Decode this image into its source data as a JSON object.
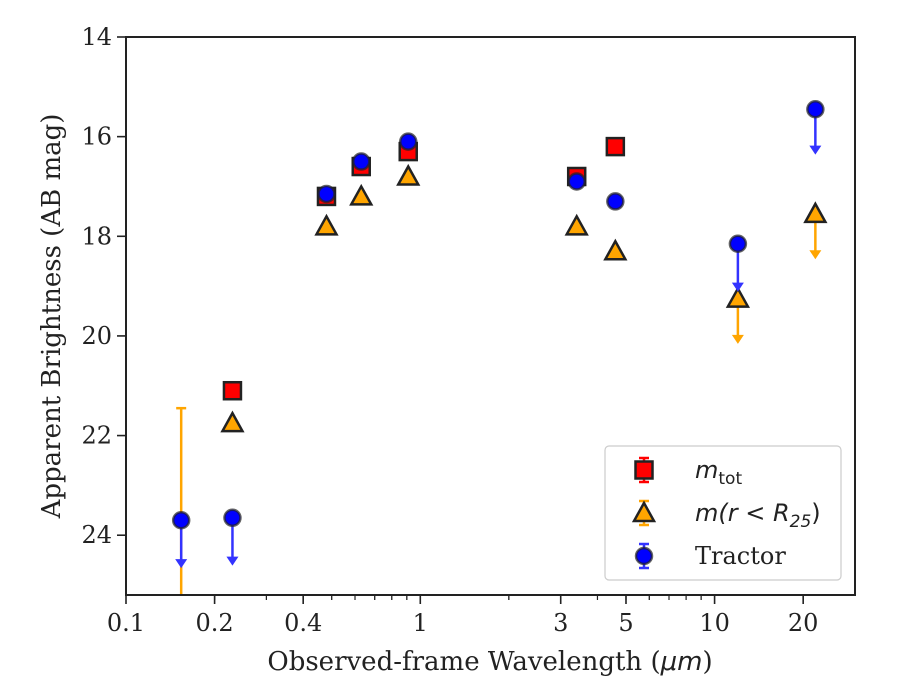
{
  "chart_data": {
    "type": "scatter",
    "xscale": "log",
    "xlim": [
      0.1,
      30
    ],
    "ylim": [
      25.2,
      14
    ],
    "y_inverted": true,
    "xlabel_main": "Observed-frame Wavelength (",
    "xlabel_unit": "μm",
    "xlabel_end": ")",
    "ylabel": "Apparent Brightness (AB mag)",
    "x_ticks": [
      {
        "value": 0.1,
        "label": "0.1"
      },
      {
        "value": 0.2,
        "label": "0.2"
      },
      {
        "value": 0.4,
        "label": "0.4"
      },
      {
        "value": 1,
        "label": "1"
      },
      {
        "value": 3,
        "label": "3"
      },
      {
        "value": 5,
        "label": "5"
      },
      {
        "value": 10,
        "label": "10"
      },
      {
        "value": 20,
        "label": "20"
      }
    ],
    "y_ticks": [
      {
        "value": 14,
        "label": "14"
      },
      {
        "value": 16,
        "label": "16"
      },
      {
        "value": 18,
        "label": "18"
      },
      {
        "value": 20,
        "label": "20"
      },
      {
        "value": 22,
        "label": "22"
      },
      {
        "value": 24,
        "label": "24"
      }
    ],
    "legend_position": "lower right",
    "series": [
      {
        "key": "mtot",
        "marker": "square",
        "color": "#ff0000",
        "errcolor": "#ff0000",
        "points": [
          {
            "x": 0.23,
            "y": 21.1
          },
          {
            "x": 0.48,
            "y": 17.2
          },
          {
            "x": 0.63,
            "y": 16.6
          },
          {
            "x": 0.91,
            "y": 16.3
          },
          {
            "x": 3.4,
            "y": 16.8
          },
          {
            "x": 4.6,
            "y": 16.2
          }
        ]
      },
      {
        "key": "mr25",
        "marker": "triangle",
        "color": "#ffa500",
        "errcolor": "#ffa500",
        "points": [
          {
            "x": 0.23,
            "y": 21.75
          },
          {
            "x": 0.48,
            "y": 17.8
          },
          {
            "x": 0.63,
            "y": 17.2
          },
          {
            "x": 0.91,
            "y": 16.8
          },
          {
            "x": 3.4,
            "y": 17.8
          },
          {
            "x": 4.6,
            "y": 18.3
          },
          {
            "x": 12,
            "y": 19.25,
            "upper_limit_to": 20.1
          },
          {
            "x": 22,
            "y": 17.55,
            "upper_limit_to": 18.4
          }
        ],
        "errorbars": [
          {
            "x": 0.154,
            "y_low": 21.45,
            "y_high": 25.2
          }
        ]
      },
      {
        "key": "tractor",
        "marker": "circle",
        "color": "#0000ff",
        "errcolor": "#3333ff",
        "points": [
          {
            "x": 0.154,
            "y": 23.7,
            "upper_limit_to": 24.6
          },
          {
            "x": 0.23,
            "y": 23.65,
            "upper_limit_to": 24.55
          },
          {
            "x": 0.48,
            "y": 17.15
          },
          {
            "x": 0.63,
            "y": 16.5
          },
          {
            "x": 0.91,
            "y": 16.1
          },
          {
            "x": 3.4,
            "y": 16.9
          },
          {
            "x": 4.6,
            "y": 17.3
          },
          {
            "x": 12,
            "y": 18.15,
            "upper_limit_to": 19.05
          },
          {
            "x": 22,
            "y": 15.45,
            "upper_limit_to": 16.3
          }
        ]
      }
    ],
    "legend": [
      {
        "key": "mtot",
        "marker": "square",
        "label_main": "m",
        "label_sub": "tot",
        "label_tail": ""
      },
      {
        "key": "mr25",
        "marker": "triangle",
        "label_main": "m(r < R",
        "label_sub": "25",
        "label_tail": ")"
      },
      {
        "key": "tractor",
        "marker": "circle",
        "label_main": "Tractor",
        "label_sub": "",
        "label_tail": ""
      }
    ]
  }
}
